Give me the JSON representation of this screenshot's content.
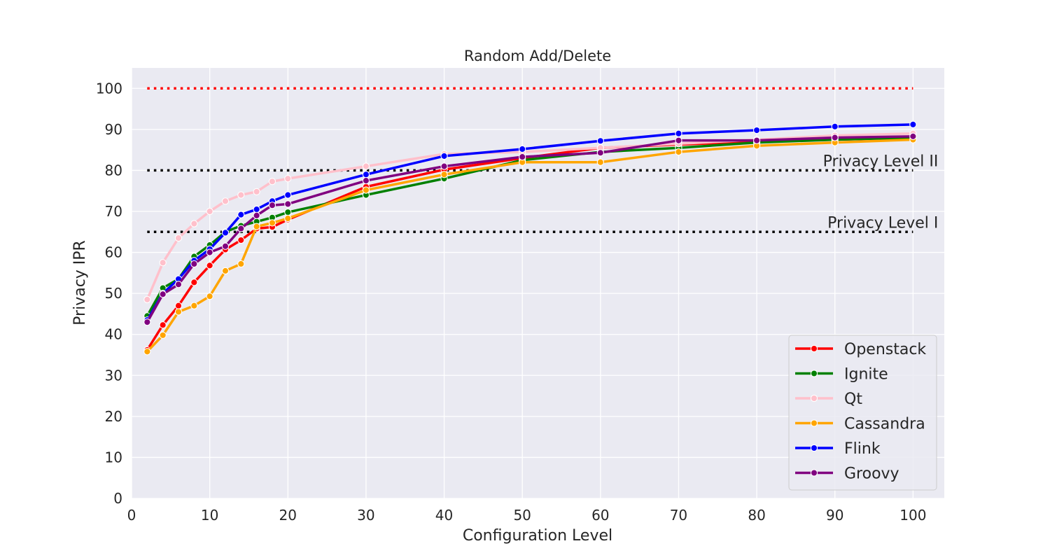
{
  "chart_data": {
    "type": "line",
    "title": "Random Add/Delete",
    "xlabel": "Configuration Level",
    "ylabel": "Privacy IPR",
    "xlim": [
      0,
      104
    ],
    "ylim": [
      0,
      105
    ],
    "xticks": [
      0,
      10,
      20,
      30,
      40,
      50,
      60,
      70,
      80,
      90,
      100
    ],
    "yticks": [
      0,
      10,
      20,
      30,
      40,
      50,
      60,
      70,
      80,
      90,
      100
    ],
    "grid": true,
    "legend_position": "bottom-right",
    "x": [
      2,
      4,
      6,
      8,
      10,
      12,
      14,
      16,
      18,
      20,
      30,
      40,
      50,
      60,
      70,
      80,
      90,
      100
    ],
    "reference_lines": [
      {
        "y": 100,
        "color": "#ff0000",
        "label": ""
      },
      {
        "y": 80,
        "color": "#000000",
        "label": "Privacy Level II"
      },
      {
        "y": 65,
        "color": "#000000",
        "label": "Privacy Level I"
      }
    ],
    "series": [
      {
        "name": "Openstack",
        "color": "#ff0000",
        "values": [
          36.2,
          42.3,
          47,
          52.7,
          56.8,
          60.7,
          63,
          65.8,
          66.2,
          68,
          76,
          80.2,
          83,
          85.5,
          86.3,
          87,
          87.5,
          88
        ]
      },
      {
        "name": "Ignite",
        "color": "#008000",
        "values": [
          44.5,
          51.3,
          53.5,
          59,
          61.8,
          65,
          66.5,
          67.5,
          68.5,
          69.8,
          74,
          78,
          82.5,
          84.5,
          85.5,
          86.8,
          87.5,
          88
        ]
      },
      {
        "name": "Qt",
        "color": "#ffc0cb",
        "values": [
          48.5,
          57.5,
          63.5,
          67,
          70,
          72.5,
          74,
          74.8,
          77.3,
          78,
          81,
          84,
          84.5,
          85.5,
          86.5,
          87.5,
          88.5,
          89
        ]
      },
      {
        "name": "Cassandra",
        "color": "#ffa500",
        "values": [
          35.8,
          39.8,
          45.5,
          47,
          49.3,
          55.5,
          57.2,
          66.3,
          67.2,
          68.3,
          75.2,
          79,
          82,
          82,
          84.5,
          86,
          86.8,
          87.5
        ]
      },
      {
        "name": "Flink",
        "color": "#0000ff",
        "values": [
          43.5,
          50,
          53.5,
          58,
          60.8,
          64.8,
          69.2,
          70.5,
          72.5,
          74,
          79,
          83.5,
          85.2,
          87.2,
          89,
          89.8,
          90.7,
          91.2
        ]
      },
      {
        "name": "Groovy",
        "color": "#800080",
        "values": [
          43,
          49.8,
          52.2,
          57.2,
          60,
          61.5,
          65.8,
          69,
          71.5,
          71.8,
          77.5,
          81,
          83.3,
          84.3,
          87.3,
          87.3,
          88,
          88.3
        ]
      }
    ]
  }
}
